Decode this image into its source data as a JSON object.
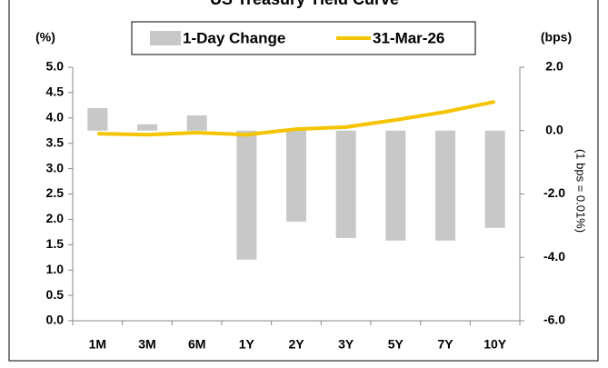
{
  "chart_data": {
    "type": "bar_line",
    "title": "US Treasury Yield Curve",
    "y_label": "(%)",
    "y2_label": "(bps)",
    "y2_note": "(1 bps = 0.01%)",
    "categories": [
      "1M",
      "3M",
      "6M",
      "1Y",
      "2Y",
      "3Y",
      "5Y",
      "7Y",
      "10Y"
    ],
    "series": [
      {
        "name": "1-Day Change",
        "type": "bar",
        "axis": "y2",
        "color": "#c8c8c8",
        "values": [
          0.71,
          0.2,
          0.48,
          -4.07,
          -2.87,
          -3.39,
          -3.47,
          -3.47,
          -3.07
        ]
      },
      {
        "name": "31-Mar-26",
        "type": "line",
        "axis": "y",
        "color": "#f5c400",
        "values": [
          3.69,
          3.67,
          3.71,
          3.67,
          3.78,
          3.82,
          3.96,
          4.12,
          4.32
        ]
      }
    ],
    "ylim": [
      0,
      5
    ],
    "yticks": [
      {
        "value": 0,
        "label": "0.0"
      },
      0.5,
      {
        "value": 1,
        "label": "1.0"
      },
      1.5,
      {
        "value": 2,
        "label": "2.0"
      },
      2.5,
      {
        "value": 3,
        "label": "3.0"
      },
      3.5,
      {
        "value": 4,
        "label": "4.0"
      },
      4.5,
      {
        "value": 5,
        "label": "5.0"
      }
    ],
    "y2lim": [
      -6,
      2
    ],
    "y2ticks": [
      {
        "value": -6,
        "label": "-6.0"
      },
      {
        "value": -4,
        "label": "-4.0"
      },
      {
        "value": -2,
        "label": "-2.0"
      },
      {
        "value": 0,
        "label": "0.0"
      },
      {
        "value": 2,
        "label": "2.0"
      }
    ]
  }
}
